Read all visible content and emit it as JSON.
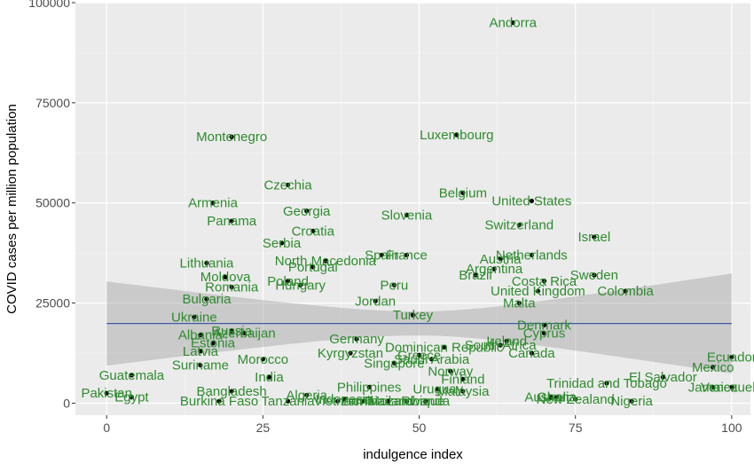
{
  "chart_data": {
    "type": "scatter",
    "xlabel": "indulgence index",
    "ylabel": "COVID  cases per million population",
    "xlim": [
      -5,
      103
    ],
    "ylim": [
      -3000,
      100000
    ],
    "x_ticks": [
      0,
      25,
      50,
      75,
      100
    ],
    "y_ticks": [
      0,
      25000,
      50000,
      75000,
      100000
    ],
    "x_tick_labels": [
      "0",
      "25",
      "50",
      "75",
      "100"
    ],
    "y_tick_labels": [
      "0",
      "25000",
      "50000",
      "75000",
      "100000"
    ],
    "grid": true,
    "trend": {
      "method": "lm",
      "y_at_xmin": 19900,
      "y_at_xmax": 19900,
      "band_lower_at_xmin": 9500,
      "band_upper_at_xmin": 30500,
      "band_lower_at_xmax": 7500,
      "band_upper_at_xmax": 32500,
      "band_lower_at_center": 17000,
      "band_upper_at_center": 23000
    },
    "points": [
      {
        "label": "Andorra",
        "x": 65,
        "y": 95000
      },
      {
        "label": "Montenegro",
        "x": 20,
        "y": 66500
      },
      {
        "label": "Luxembourg",
        "x": 56,
        "y": 67000
      },
      {
        "label": "Czechia",
        "x": 29,
        "y": 54500
      },
      {
        "label": "Armenia",
        "x": 17,
        "y": 50000
      },
      {
        "label": "Belgium",
        "x": 57,
        "y": 52500
      },
      {
        "label": "United States",
        "x": 68,
        "y": 50500
      },
      {
        "label": "Georgia",
        "x": 32,
        "y": 48000
      },
      {
        "label": "Slovenia",
        "x": 48,
        "y": 47000
      },
      {
        "label": "Panama",
        "x": 20,
        "y": 45500
      },
      {
        "label": "Switzerland",
        "x": 66,
        "y": 44500
      },
      {
        "label": "Croatia",
        "x": 33,
        "y": 43000
      },
      {
        "label": "Israel",
        "x": 78,
        "y": 41500
      },
      {
        "label": "Serbia",
        "x": 28,
        "y": 40000
      },
      {
        "label": "Spain",
        "x": 44,
        "y": 37000
      },
      {
        "label": "France",
        "x": 48,
        "y": 37000
      },
      {
        "label": "North Macedonia",
        "x": 35,
        "y": 35500
      },
      {
        "label": "Portugal",
        "x": 33,
        "y": 34000
      },
      {
        "label": "Lithuania",
        "x": 16,
        "y": 35000
      },
      {
        "label": "Netherlands",
        "x": 68,
        "y": 37000
      },
      {
        "label": "Austria",
        "x": 63,
        "y": 36000
      },
      {
        "label": "Argentina",
        "x": 62,
        "y": 33500
      },
      {
        "label": "Brazil",
        "x": 59,
        "y": 32000
      },
      {
        "label": "Moldova",
        "x": 19,
        "y": 31500
      },
      {
        "label": "Poland",
        "x": 29,
        "y": 30500
      },
      {
        "label": "Hungary",
        "x": 31,
        "y": 29500
      },
      {
        "label": "Romania",
        "x": 20,
        "y": 29000
      },
      {
        "label": "Peru",
        "x": 46,
        "y": 29500
      },
      {
        "label": "Costa Rica",
        "x": 70,
        "y": 30500
      },
      {
        "label": "Sweden",
        "x": 78,
        "y": 32000
      },
      {
        "label": "United Kingdom",
        "x": 69,
        "y": 28000
      },
      {
        "label": "Colombia",
        "x": 83,
        "y": 28000
      },
      {
        "label": "Bulgaria",
        "x": 16,
        "y": 26000
      },
      {
        "label": "Jordan",
        "x": 43,
        "y": 25500
      },
      {
        "label": "Malta",
        "x": 66,
        "y": 25000
      },
      {
        "label": "Ukraine",
        "x": 14,
        "y": 21500
      },
      {
        "label": "Turkey",
        "x": 49,
        "y": 22000
      },
      {
        "label": "Denmark",
        "x": 70,
        "y": 19500
      },
      {
        "label": "Cyprus",
        "x": 70,
        "y": 17500
      },
      {
        "label": "Albania",
        "x": 15,
        "y": 17000
      },
      {
        "label": "Russia",
        "x": 20,
        "y": 18000
      },
      {
        "label": "Azerbaijan",
        "x": 22,
        "y": 17500
      },
      {
        "label": "Estonia",
        "x": 17,
        "y": 15000
      },
      {
        "label": "Latvia",
        "x": 15,
        "y": 13000
      },
      {
        "label": "Germany",
        "x": 40,
        "y": 16000
      },
      {
        "label": "Ireland",
        "x": 64,
        "y": 15500
      },
      {
        "label": "South Africa",
        "x": 63,
        "y": 14500
      },
      {
        "label": "Dominican Republic",
        "x": 54,
        "y": 14000
      },
      {
        "label": "Canada",
        "x": 68,
        "y": 12500
      },
      {
        "label": "Kyrgyzstan",
        "x": 39,
        "y": 12500
      },
      {
        "label": "Saudi Arabia",
        "x": 52,
        "y": 11000
      },
      {
        "label": "Greece",
        "x": 50,
        "y": 12000
      },
      {
        "label": "Morocco",
        "x": 25,
        "y": 11000
      },
      {
        "label": "Singapore",
        "x": 46,
        "y": 10000
      },
      {
        "label": "Suriname",
        "x": 15,
        "y": 9500
      },
      {
        "label": "Norway",
        "x": 55,
        "y": 8000
      },
      {
        "label": "Guatemala",
        "x": 4,
        "y": 7000
      },
      {
        "label": "India",
        "x": 26,
        "y": 6500
      },
      {
        "label": "Finland",
        "x": 57,
        "y": 6000
      },
      {
        "label": "Ecuador",
        "x": 100,
        "y": 11500
      },
      {
        "label": "Mexico",
        "x": 97,
        "y": 9000
      },
      {
        "label": "El Salvador",
        "x": 89,
        "y": 6500
      },
      {
        "label": "Trinidad and Tobago",
        "x": 80,
        "y": 5000
      },
      {
        "label": "Jamaica",
        "x": 97,
        "y": 4000
      },
      {
        "label": "Venezuela",
        "x": 100,
        "y": 4000
      },
      {
        "label": "Philippines",
        "x": 42,
        "y": 4000
      },
      {
        "label": "Uruguay",
        "x": 53,
        "y": 3500
      },
      {
        "label": "Malaysia",
        "x": 57,
        "y": 3000
      },
      {
        "label": "Bangladesh",
        "x": 20,
        "y": 3000
      },
      {
        "label": "Pakistan",
        "x": 0,
        "y": 2500
      },
      {
        "label": "Egypt",
        "x": 4,
        "y": 1500
      },
      {
        "label": "Algeria",
        "x": 32,
        "y": 2000
      },
      {
        "label": "Ghana",
        "x": 72,
        "y": 1500
      },
      {
        "label": "Australia",
        "x": 71,
        "y": 1500
      },
      {
        "label": "New Zealand",
        "x": 75,
        "y": 1000
      },
      {
        "label": "Nigeria",
        "x": 84,
        "y": 500
      },
      {
        "label": "Burkina Faso",
        "x": 18,
        "y": 500
      },
      {
        "label": "Tanzania",
        "x": 29,
        "y": 500
      },
      {
        "label": "Indonesia",
        "x": 38,
        "y": 1000
      },
      {
        "label": "Vietnam",
        "x": 37,
        "y": 500
      },
      {
        "label": "Thailand",
        "x": 45,
        "y": 500
      },
      {
        "label": "Zambia",
        "x": 41,
        "y": 500
      },
      {
        "label": "Mozambique",
        "x": 48,
        "y": 500
      },
      {
        "label": "Rwanda",
        "x": 51,
        "y": 500
      }
    ]
  }
}
